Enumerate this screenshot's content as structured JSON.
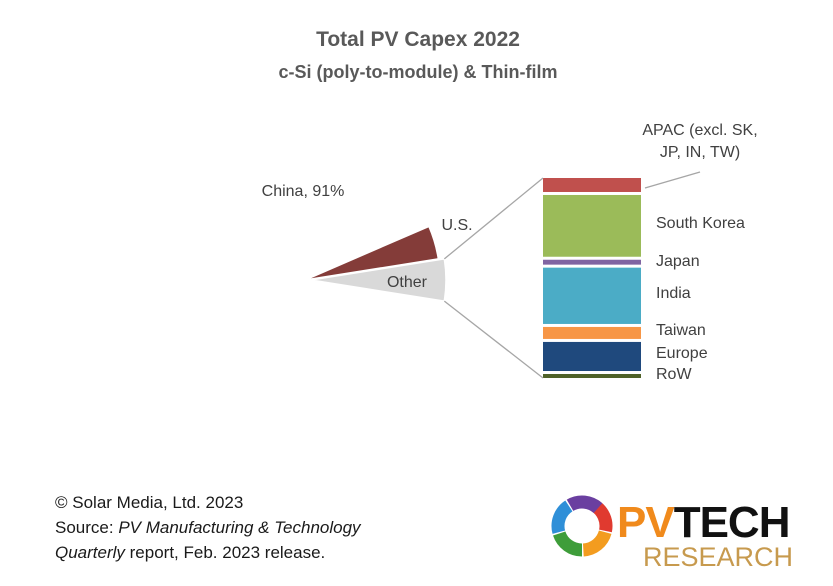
{
  "chart_data": {
    "type": "pie",
    "title": "Total PV Capex 2022",
    "subtitle": "c-Si (poly-to-module) & Thin-film",
    "pie": {
      "slices": [
        {
          "name": "China",
          "label": "China, 91%",
          "value": 91,
          "color": "#4f81bd"
        },
        {
          "name": "U.S.",
          "label": "U.S.",
          "value": 4,
          "color": "#843c39"
        },
        {
          "name": "Other",
          "label": "Other",
          "value": 5,
          "color": "#d9d9d9"
        }
      ]
    },
    "breakdown_of": "Other",
    "bar": {
      "type": "stacked-bar",
      "segments": [
        {
          "name": "APAC (excl. SK, JP, IN, TW)",
          "label_lines": [
            "APAC (excl. SK,",
            "JP, IN, TW)"
          ],
          "value": 7.7,
          "color": "#c0504d"
        },
        {
          "name": "South Korea",
          "label_lines": [
            "South Korea"
          ],
          "value": 34,
          "color": "#9bbb59"
        },
        {
          "name": "Japan",
          "label_lines": [
            "Japan"
          ],
          "value": 2.7,
          "color": "#8064a2"
        },
        {
          "name": "India",
          "label_lines": [
            "India"
          ],
          "value": 31,
          "color": "#4bacc6"
        },
        {
          "name": "Taiwan",
          "label_lines": [
            "Taiwan"
          ],
          "value": 6.6,
          "color": "#f79646"
        },
        {
          "name": "Europe",
          "label_lines": [
            "Europe"
          ],
          "value": 16,
          "color": "#1f497d"
        },
        {
          "name": "RoW",
          "label_lines": [
            "RoW"
          ],
          "value": 2.2,
          "color": "#4f6228"
        }
      ]
    }
  },
  "footer": {
    "copyright": "© Solar Media, Ltd. 2023",
    "source_prefix": "Source: ",
    "source_italic_1": "PV Manufacturing & Technology",
    "source_italic_2": "Quarterly",
    "source_suffix": " report, Feb. 2023 release."
  },
  "logo": {
    "text_1": "PVTECH",
    "text_2": "RESEARCH"
  }
}
